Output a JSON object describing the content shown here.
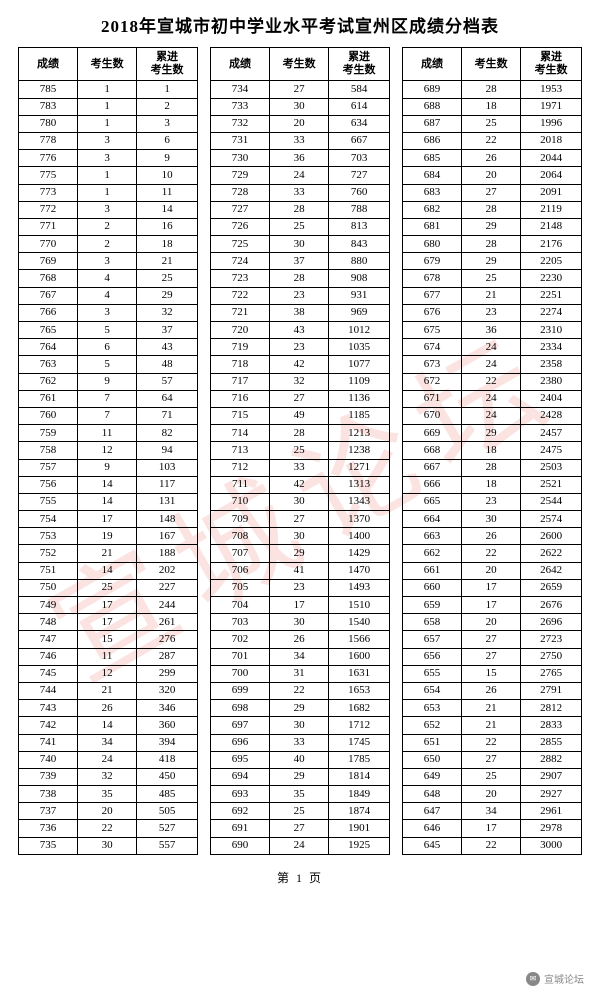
{
  "title": "2018年宣城市初中学业水平考试宣州区成绩分档表",
  "page_label": "第 1 页",
  "source_label": "宣城论坛",
  "columns": [
    "成绩",
    "考生数",
    "累进\n考生数"
  ],
  "watermark_text": "宣城论坛",
  "tables": [
    [
      [
        785,
        1,
        1
      ],
      [
        783,
        1,
        2
      ],
      [
        780,
        1,
        3
      ],
      [
        778,
        3,
        6
      ],
      [
        776,
        3,
        9
      ],
      [
        775,
        1,
        10
      ],
      [
        773,
        1,
        11
      ],
      [
        772,
        3,
        14
      ],
      [
        771,
        2,
        16
      ],
      [
        770,
        2,
        18
      ],
      [
        769,
        3,
        21
      ],
      [
        768,
        4,
        25
      ],
      [
        767,
        4,
        29
      ],
      [
        766,
        3,
        32
      ],
      [
        765,
        5,
        37
      ],
      [
        764,
        6,
        43
      ],
      [
        763,
        5,
        48
      ],
      [
        762,
        9,
        57
      ],
      [
        761,
        7,
        64
      ],
      [
        760,
        7,
        71
      ],
      [
        759,
        11,
        82
      ],
      [
        758,
        12,
        94
      ],
      [
        757,
        9,
        103
      ],
      [
        756,
        14,
        117
      ],
      [
        755,
        14,
        131
      ],
      [
        754,
        17,
        148
      ],
      [
        753,
        19,
        167
      ],
      [
        752,
        21,
        188
      ],
      [
        751,
        14,
        202
      ],
      [
        750,
        25,
        227
      ],
      [
        749,
        17,
        244
      ],
      [
        748,
        17,
        261
      ],
      [
        747,
        15,
        276
      ],
      [
        746,
        11,
        287
      ],
      [
        745,
        12,
        299
      ],
      [
        744,
        21,
        320
      ],
      [
        743,
        26,
        346
      ],
      [
        742,
        14,
        360
      ],
      [
        741,
        34,
        394
      ],
      [
        740,
        24,
        418
      ],
      [
        739,
        32,
        450
      ],
      [
        738,
        35,
        485
      ],
      [
        737,
        20,
        505
      ],
      [
        736,
        22,
        527
      ],
      [
        735,
        30,
        557
      ]
    ],
    [
      [
        734,
        27,
        584
      ],
      [
        733,
        30,
        614
      ],
      [
        732,
        20,
        634
      ],
      [
        731,
        33,
        667
      ],
      [
        730,
        36,
        703
      ],
      [
        729,
        24,
        727
      ],
      [
        728,
        33,
        760
      ],
      [
        727,
        28,
        788
      ],
      [
        726,
        25,
        813
      ],
      [
        725,
        30,
        843
      ],
      [
        724,
        37,
        880
      ],
      [
        723,
        28,
        908
      ],
      [
        722,
        23,
        931
      ],
      [
        721,
        38,
        969
      ],
      [
        720,
        43,
        1012
      ],
      [
        719,
        23,
        1035
      ],
      [
        718,
        42,
        1077
      ],
      [
        717,
        32,
        1109
      ],
      [
        716,
        27,
        1136
      ],
      [
        715,
        49,
        1185
      ],
      [
        714,
        28,
        1213
      ],
      [
        713,
        25,
        1238
      ],
      [
        712,
        33,
        1271
      ],
      [
        711,
        42,
        1313
      ],
      [
        710,
        30,
        1343
      ],
      [
        709,
        27,
        1370
      ],
      [
        708,
        30,
        1400
      ],
      [
        707,
        29,
        1429
      ],
      [
        706,
        41,
        1470
      ],
      [
        705,
        23,
        1493
      ],
      [
        704,
        17,
        1510
      ],
      [
        703,
        30,
        1540
      ],
      [
        702,
        26,
        1566
      ],
      [
        701,
        34,
        1600
      ],
      [
        700,
        31,
        1631
      ],
      [
        699,
        22,
        1653
      ],
      [
        698,
        29,
        1682
      ],
      [
        697,
        30,
        1712
      ],
      [
        696,
        33,
        1745
      ],
      [
        695,
        40,
        1785
      ],
      [
        694,
        29,
        1814
      ],
      [
        693,
        35,
        1849
      ],
      [
        692,
        25,
        1874
      ],
      [
        691,
        27,
        1901
      ],
      [
        690,
        24,
        1925
      ]
    ],
    [
      [
        689,
        28,
        1953
      ],
      [
        688,
        18,
        1971
      ],
      [
        687,
        25,
        1996
      ],
      [
        686,
        22,
        2018
      ],
      [
        685,
        26,
        2044
      ],
      [
        684,
        20,
        2064
      ],
      [
        683,
        27,
        2091
      ],
      [
        682,
        28,
        2119
      ],
      [
        681,
        29,
        2148
      ],
      [
        680,
        28,
        2176
      ],
      [
        679,
        29,
        2205
      ],
      [
        678,
        25,
        2230
      ],
      [
        677,
        21,
        2251
      ],
      [
        676,
        23,
        2274
      ],
      [
        675,
        36,
        2310
      ],
      [
        674,
        24,
        2334
      ],
      [
        673,
        24,
        2358
      ],
      [
        672,
        22,
        2380
      ],
      [
        671,
        24,
        2404
      ],
      [
        670,
        24,
        2428
      ],
      [
        669,
        29,
        2457
      ],
      [
        668,
        18,
        2475
      ],
      [
        667,
        28,
        2503
      ],
      [
        666,
        18,
        2521
      ],
      [
        665,
        23,
        2544
      ],
      [
        664,
        30,
        2574
      ],
      [
        663,
        26,
        2600
      ],
      [
        662,
        22,
        2622
      ],
      [
        661,
        20,
        2642
      ],
      [
        660,
        17,
        2659
      ],
      [
        659,
        17,
        2676
      ],
      [
        658,
        20,
        2696
      ],
      [
        657,
        27,
        2723
      ],
      [
        656,
        27,
        2750
      ],
      [
        655,
        15,
        2765
      ],
      [
        654,
        26,
        2791
      ],
      [
        653,
        21,
        2812
      ],
      [
        652,
        21,
        2833
      ],
      [
        651,
        22,
        2855
      ],
      [
        650,
        27,
        2882
      ],
      [
        649,
        25,
        2907
      ],
      [
        648,
        20,
        2927
      ],
      [
        647,
        34,
        2961
      ],
      [
        646,
        17,
        2978
      ],
      [
        645,
        22,
        3000
      ]
    ]
  ]
}
